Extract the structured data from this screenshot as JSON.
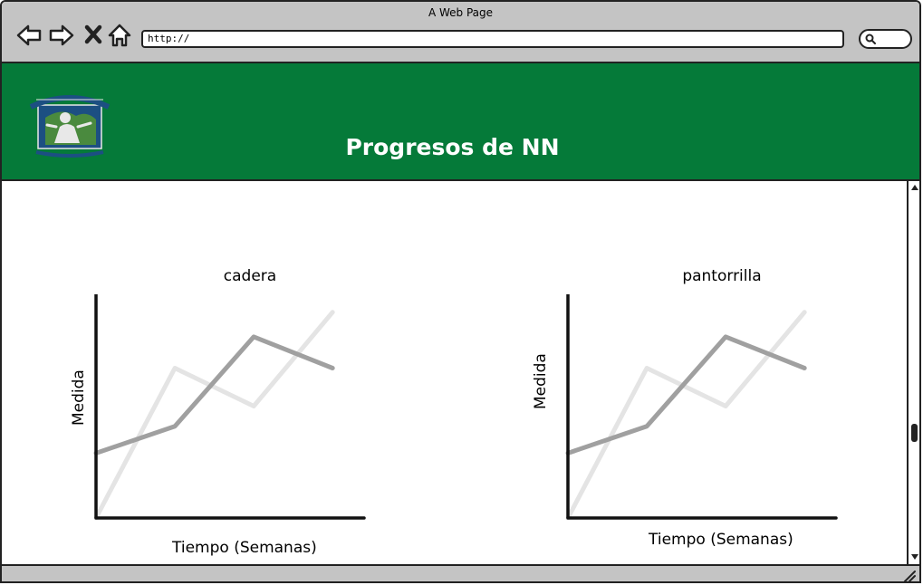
{
  "browser": {
    "window_title": "A Web Page",
    "url": "http://"
  },
  "header": {
    "title": "Progresos de NN",
    "background_color": "#057a39"
  },
  "chart_data": [
    {
      "type": "line",
      "title": "cadera",
      "xlabel": "Tiempo (Semanas)",
      "ylabel": "Medida",
      "x": [
        0,
        1,
        2,
        3
      ],
      "xlim": [
        0,
        3.4
      ],
      "ylim": [
        0,
        1
      ],
      "series": [
        {
          "color": "#a0a0a0",
          "values": [
            0.29,
            0.41,
            0.81,
            0.67
          ]
        },
        {
          "color": "#e4e4e4",
          "values": [
            0.0,
            0.67,
            0.5,
            0.92
          ]
        }
      ]
    },
    {
      "type": "line",
      "title": "pantorrilla",
      "xlabel": "Tiempo (Semanas)",
      "ylabel": "Medida",
      "x": [
        0,
        1,
        2,
        3
      ],
      "xlim": [
        0,
        3.4
      ],
      "ylim": [
        0,
        1
      ],
      "series": [
        {
          "color": "#a0a0a0",
          "values": [
            0.29,
            0.41,
            0.81,
            0.67
          ]
        },
        {
          "color": "#e4e4e4",
          "values": [
            0.0,
            0.67,
            0.5,
            0.92
          ]
        }
      ]
    }
  ]
}
